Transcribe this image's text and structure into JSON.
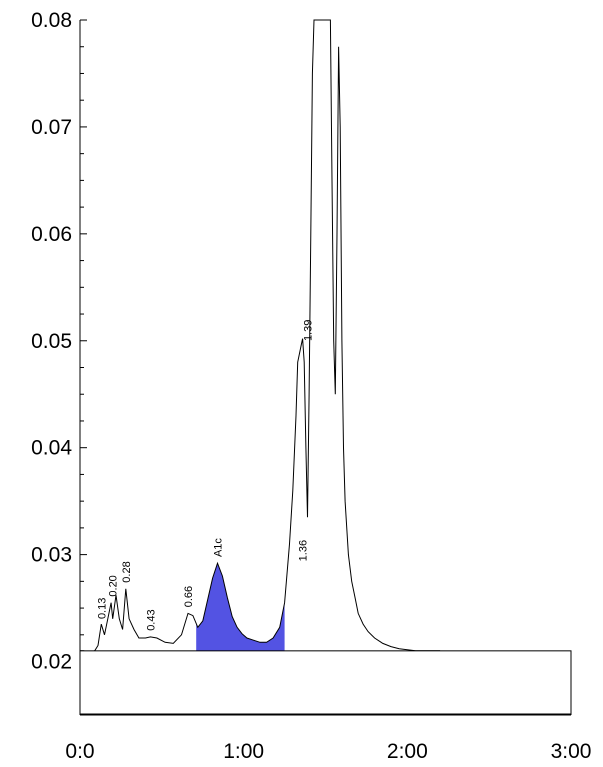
{
  "chart_data": {
    "type": "line",
    "title": "",
    "xlabel": "",
    "ylabel": "",
    "xlim": [
      "0:0",
      "3:00"
    ],
    "ylim": [
      0.015,
      0.08
    ],
    "y_ticks": [
      "0.02",
      "0.03",
      "0.04",
      "0.05",
      "0.06",
      "0.07",
      "0.08"
    ],
    "x_ticks": [
      "0:0",
      "1:00",
      "2:00",
      "3:00"
    ],
    "baseline": 0.021,
    "series": [
      {
        "x": [
          0.0,
          0.02,
          0.06,
          0.09,
          0.11,
          0.13,
          0.15,
          0.17,
          0.19,
          0.2,
          0.22,
          0.24,
          0.26,
          0.28,
          0.3,
          0.33,
          0.36,
          0.4,
          0.43,
          0.47,
          0.52,
          0.57,
          0.62,
          0.66,
          0.69,
          0.72,
          0.75,
          0.78,
          0.81,
          0.84,
          0.87,
          0.9,
          0.93,
          0.96,
          0.99,
          1.02,
          1.06,
          1.1,
          1.14,
          1.18,
          1.22,
          1.25,
          1.28,
          1.3,
          1.32,
          1.33,
          1.35,
          1.36,
          1.37,
          1.38,
          1.39,
          1.4,
          1.41,
          1.42,
          1.43,
          1.44,
          1.45,
          1.47,
          1.49,
          1.51,
          1.53,
          1.54,
          1.55,
          1.56,
          1.57,
          1.58,
          1.59,
          1.6,
          1.61,
          1.62,
          1.64,
          1.66,
          1.68,
          1.7,
          1.73,
          1.76,
          1.8,
          1.85,
          1.9,
          1.95,
          2.0,
          2.05,
          2.1,
          2.15,
          2.2
        ],
        "y": [
          0.021,
          0.021,
          0.0209,
          0.021,
          0.0215,
          0.0235,
          0.0225,
          0.024,
          0.0255,
          0.024,
          0.0262,
          0.024,
          0.023,
          0.0268,
          0.024,
          0.023,
          0.0222,
          0.0222,
          0.0223,
          0.0222,
          0.0218,
          0.0217,
          0.0225,
          0.0245,
          0.0243,
          0.0232,
          0.0238,
          0.0258,
          0.0278,
          0.0292,
          0.028,
          0.026,
          0.0242,
          0.0232,
          0.0226,
          0.0222,
          0.022,
          0.0218,
          0.0218,
          0.0222,
          0.0232,
          0.0255,
          0.031,
          0.036,
          0.043,
          0.048,
          0.0495,
          0.0502,
          0.048,
          0.04,
          0.0335,
          0.045,
          0.06,
          0.075,
          0.08,
          0.08,
          0.08,
          0.08,
          0.08,
          0.08,
          0.08,
          0.065,
          0.05,
          0.045,
          0.06,
          0.0775,
          0.07,
          0.05,
          0.04,
          0.035,
          0.03,
          0.0275,
          0.026,
          0.0245,
          0.0235,
          0.0228,
          0.0222,
          0.0217,
          0.0214,
          0.0212,
          0.0211,
          0.021,
          0.021,
          0.021,
          0.021
        ]
      }
    ],
    "shaded_peak": {
      "label": "A1c",
      "x_start": 0.71,
      "x_end": 1.25,
      "fill": "#4040e0"
    },
    "peak_labels": [
      {
        "text": "0.13",
        "x": 0.13,
        "y": 0.0236
      },
      {
        "text": "0.20",
        "x": 0.2,
        "y": 0.0257
      },
      {
        "text": "0.28",
        "x": 0.28,
        "y": 0.027
      },
      {
        "text": "0.43",
        "x": 0.43,
        "y": 0.0225
      },
      {
        "text": "0.66",
        "x": 0.66,
        "y": 0.0247
      },
      {
        "text": "A1c",
        "x": 0.84,
        "y": 0.0294
      },
      {
        "text": "1.36",
        "x": 1.36,
        "y": 0.029
      },
      {
        "text": "1.39",
        "x": 1.39,
        "y": 0.0496
      }
    ],
    "grid": false
  }
}
